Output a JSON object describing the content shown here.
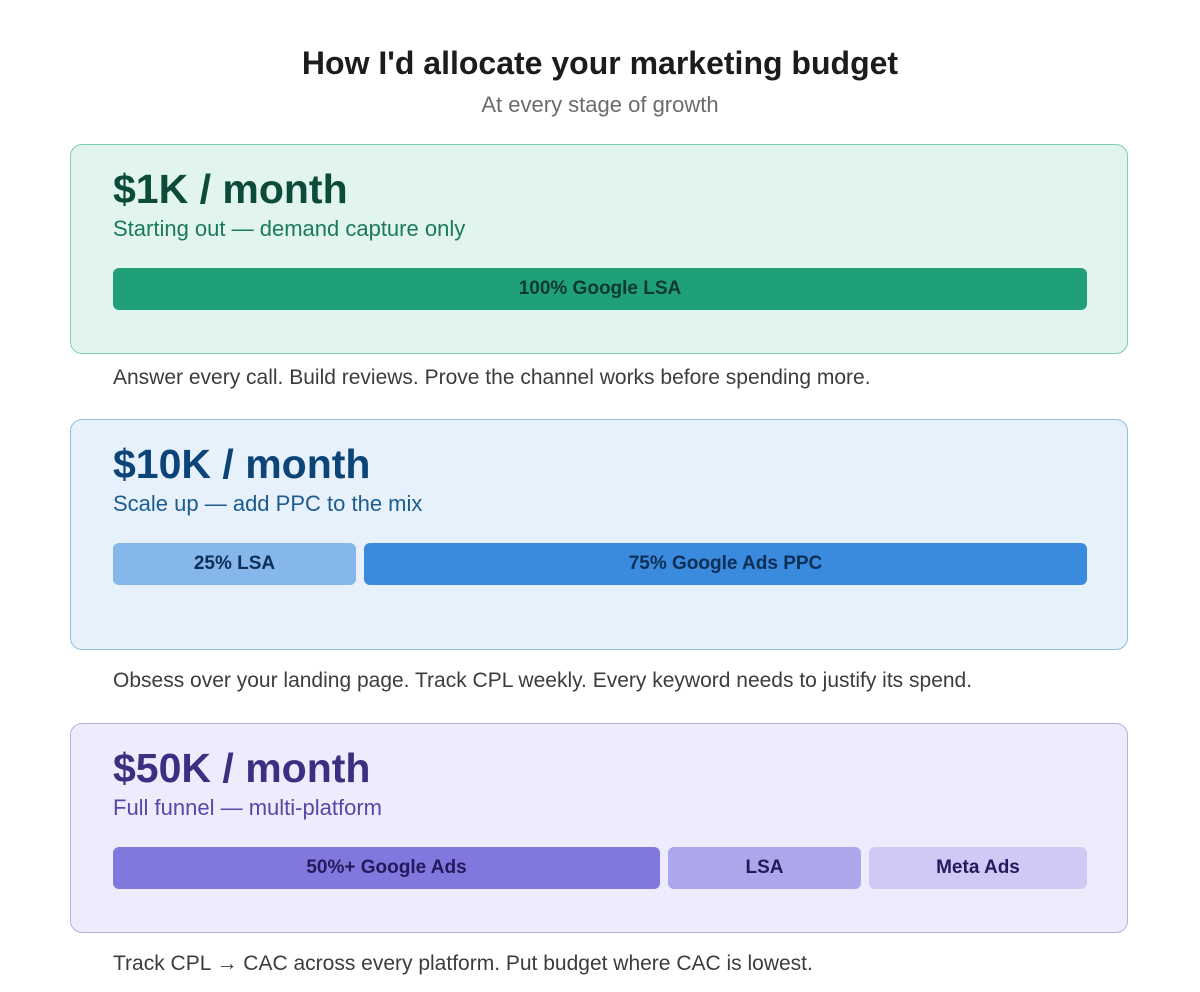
{
  "header": {
    "title": "How I'd allocate your marketing budget",
    "subtitle": "At every stage of growth"
  },
  "stages": [
    {
      "budget": "$1K / month",
      "description": "Starting out — demand capture only",
      "segments": [
        {
          "label": "100% Google LSA"
        }
      ],
      "note": "Answer every call. Build reviews. Prove the channel works before spending more."
    },
    {
      "budget": "$10K / month",
      "description": "Scale up — add PPC to the mix",
      "segments": [
        {
          "label": "25% LSA"
        },
        {
          "label": "75% Google Ads PPC"
        }
      ],
      "note": "Obsess over your landing page. Track CPL weekly. Every keyword needs to justify its spend."
    },
    {
      "budget": "$50K / month",
      "description": "Full funnel — multi-platform",
      "segments": [
        {
          "label": "50%+ Google Ads"
        },
        {
          "label": "LSA"
        },
        {
          "label": "Meta Ads"
        }
      ],
      "note": "Track CPL → CAC across every platform. Put budget where CAC is lowest."
    }
  ],
  "colors": {
    "stage1_bg": "#e1f5ee",
    "stage1_bar": "#1fa078",
    "stage2_bg": "#e6f1fb",
    "stage2_bar_lsa": "#85b7eb",
    "stage2_bar_ppc": "#3a8ade",
    "stage3_bg": "#eeecfc",
    "stage3_bar_google": "#8178de",
    "stage3_bar_lsa": "#aca6ea",
    "stage3_bar_meta": "#cfcaf5"
  }
}
